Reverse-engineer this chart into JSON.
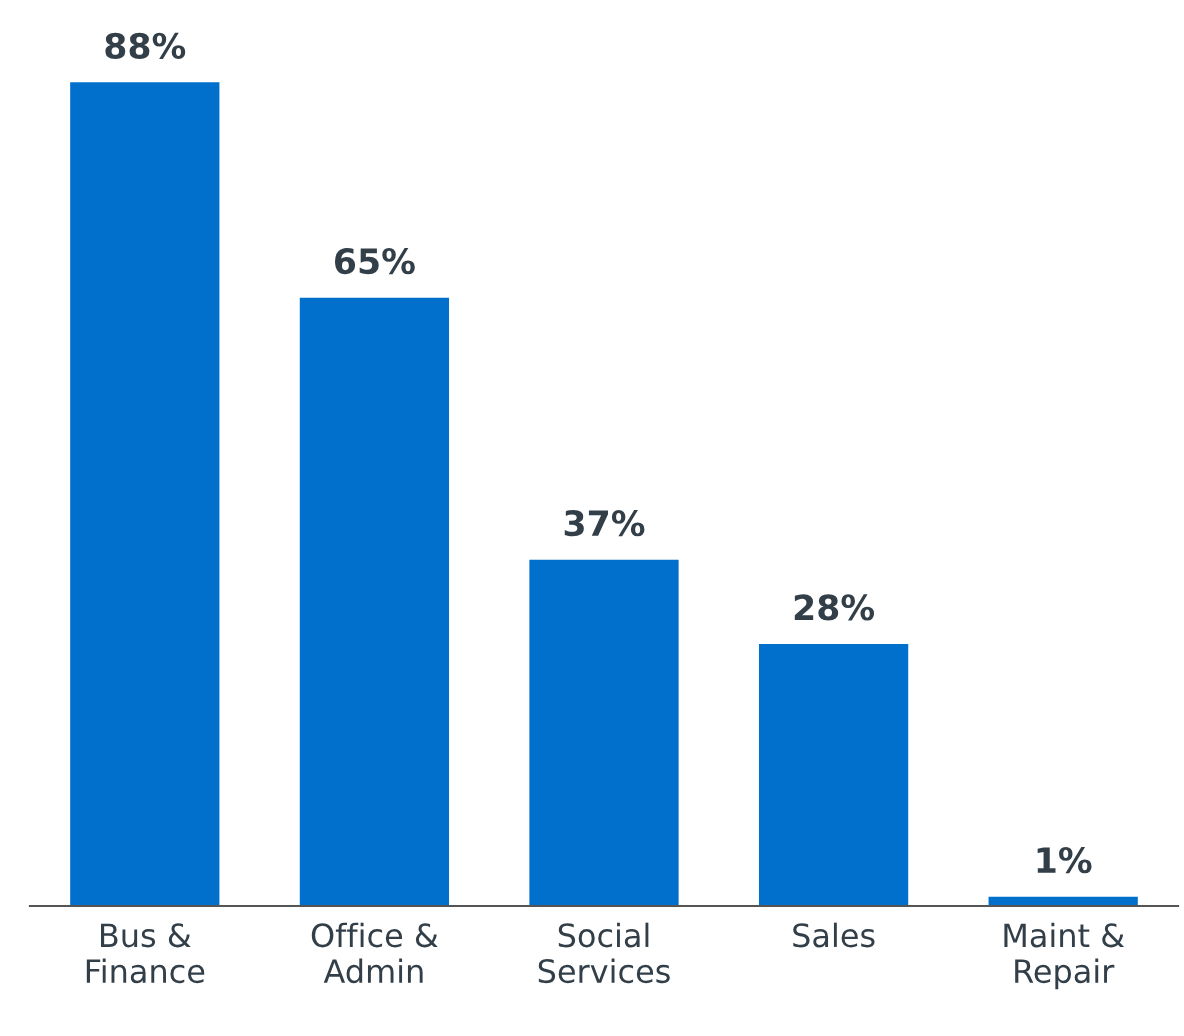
{
  "chart_data": {
    "type": "bar",
    "categories": [
      "Bus & Finance",
      "Office & Admin",
      "Social Services",
      "Sales",
      "Maint & Repair"
    ],
    "values": [
      88,
      65,
      37,
      28,
      1
    ],
    "value_labels": [
      "88%",
      "65%",
      "37%",
      "28%",
      "1%"
    ],
    "color": "#0070cc",
    "grid": false,
    "legend": false
  }
}
